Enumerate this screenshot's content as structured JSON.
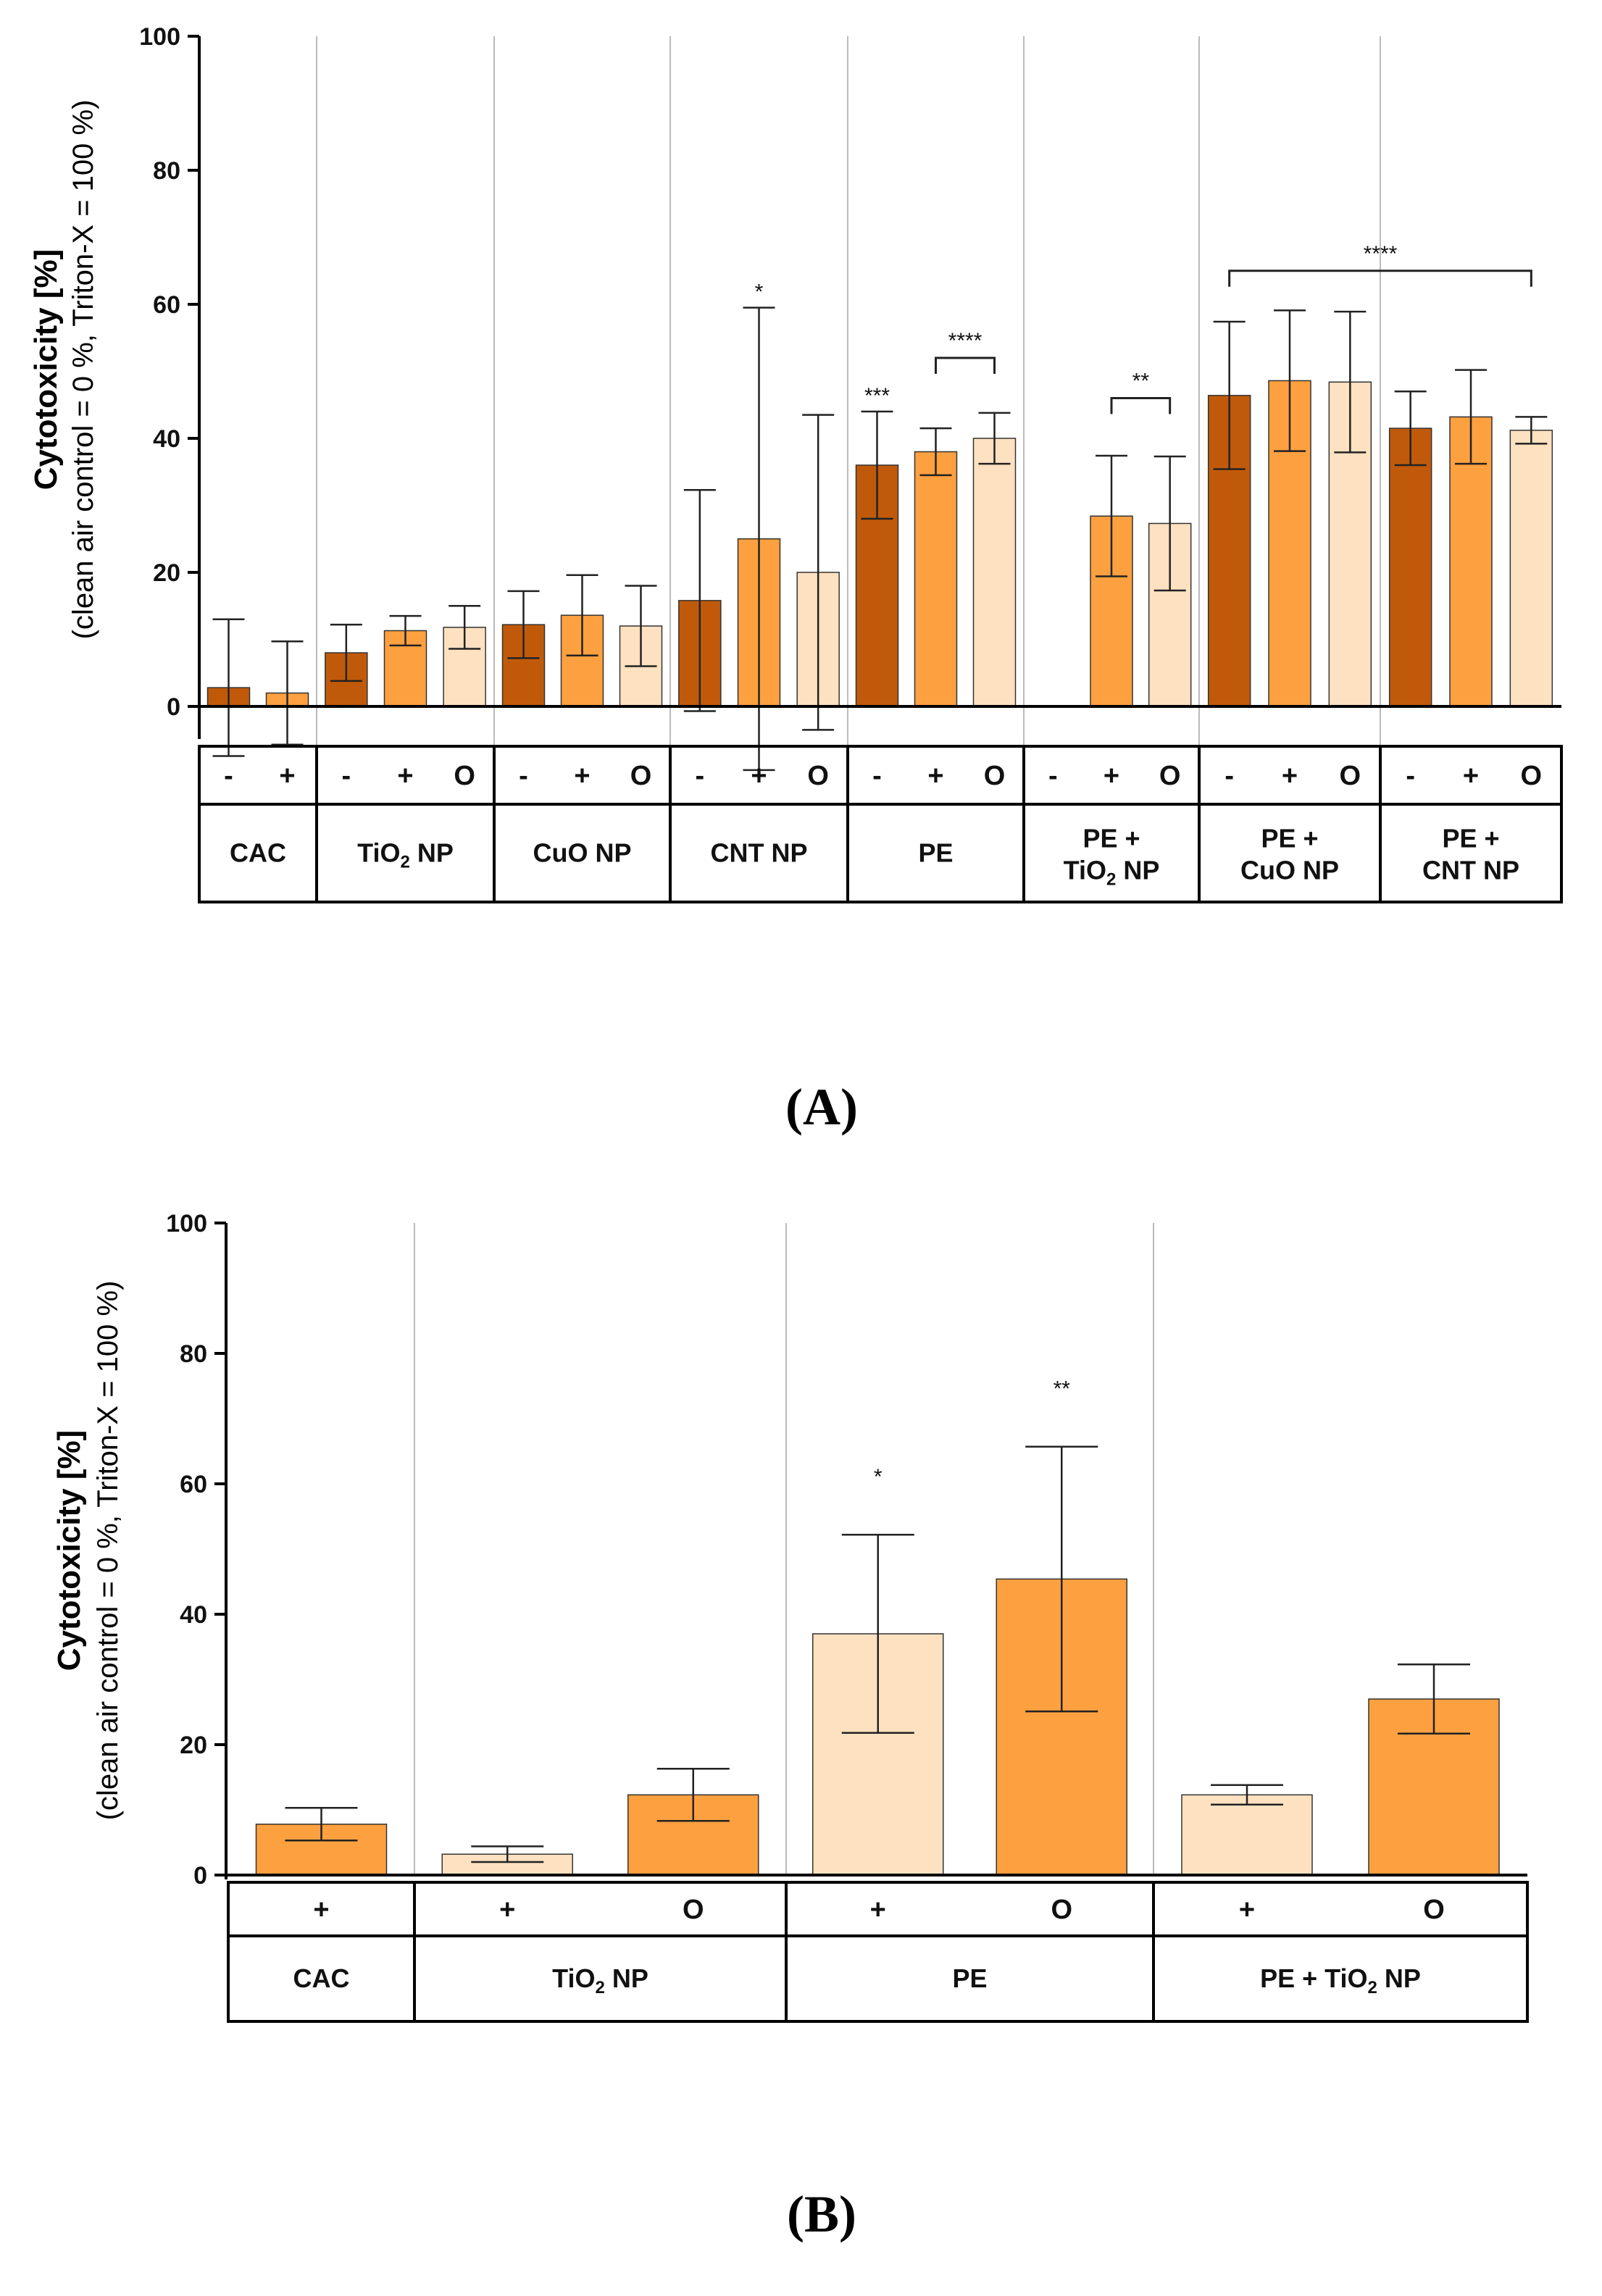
{
  "colors": {
    "dark": "#C05A0A",
    "medium": "#FCA040",
    "light": "#FDE1C0",
    "axis": "#000000",
    "separator": "#BBBBBB"
  },
  "chart_data": [
    {
      "panel": "(A)",
      "type": "bar",
      "ylabel_line1": "Cytotoxicity [%]",
      "ylabel_line2": "(clean air control = 0 %, Triton-X = 100 %)",
      "ylim": [
        -5,
        100
      ],
      "yticks": [
        "0",
        "20",
        "40",
        "60",
        "80",
        "100"
      ],
      "groups": [
        {
          "label": "CAC",
          "bars": [
            {
              "cond": "-",
              "tone": "dark",
              "value": 2.8,
              "err": 10.2
            },
            {
              "cond": "+",
              "tone": "medium",
              "value": 2.0,
              "err": 7.7
            }
          ]
        },
        {
          "label": "TiO2 NP",
          "bars": [
            {
              "cond": "-",
              "tone": "dark",
              "value": 8.0,
              "err": 4.2
            },
            {
              "cond": "+",
              "tone": "medium",
              "value": 11.3,
              "err": 2.2
            },
            {
              "cond": "O",
              "tone": "light",
              "value": 11.8,
              "err": 3.2
            }
          ]
        },
        {
          "label": "CuO NP",
          "bars": [
            {
              "cond": "-",
              "tone": "dark",
              "value": 12.2,
              "err": 5.0
            },
            {
              "cond": "+",
              "tone": "medium",
              "value": 13.6,
              "err": 6.0
            },
            {
              "cond": "O",
              "tone": "light",
              "value": 12.0,
              "err": 6.0
            }
          ]
        },
        {
          "label": "CNT NP",
          "bars": [
            {
              "cond": "-",
              "tone": "dark",
              "value": 15.8,
              "err": 16.5
            },
            {
              "cond": "+",
              "tone": "medium",
              "value": 25.0,
              "err": 34.5,
              "sig": "*"
            },
            {
              "cond": "O",
              "tone": "light",
              "value": 20.0,
              "err": 23.5
            }
          ]
        },
        {
          "label": "PE",
          "bars": [
            {
              "cond": "-",
              "tone": "dark",
              "value": 36.0,
              "err": 8.0,
              "sig": "***"
            },
            {
              "cond": "+",
              "tone": "medium",
              "value": 38.0,
              "err": 3.5
            },
            {
              "cond": "O",
              "tone": "light",
              "value": 40.0,
              "err": 3.8
            }
          ]
        },
        {
          "label": "PE + TiO2 NP",
          "bars": [
            {
              "cond": "-",
              "tone": "dark",
              "value": 0,
              "err": 0
            },
            {
              "cond": "+",
              "tone": "medium",
              "value": 28.4,
              "err": 9.0
            },
            {
              "cond": "O",
              "tone": "light",
              "value": 27.3,
              "err": 10.0
            }
          ]
        },
        {
          "label": "PE + CuO NP",
          "bars": [
            {
              "cond": "-",
              "tone": "dark",
              "value": 46.4,
              "err": 11.0
            },
            {
              "cond": "+",
              "tone": "medium",
              "value": 48.6,
              "err": 10.5
            },
            {
              "cond": "O",
              "tone": "light",
              "value": 48.4,
              "err": 10.5
            }
          ]
        },
        {
          "label": "PE + CNT NP",
          "bars": [
            {
              "cond": "-",
              "tone": "dark",
              "value": 41.5,
              "err": 5.5
            },
            {
              "cond": "+",
              "tone": "medium",
              "value": 43.2,
              "err": 7.0
            },
            {
              "cond": "O",
              "tone": "light",
              "value": 41.2,
              "err": 2.0
            }
          ]
        }
      ],
      "brackets": [
        {
          "label": "****",
          "group_from": 4,
          "bar_from": 1,
          "group_to": 4,
          "bar_to": 2,
          "y": 52
        },
        {
          "label": "**",
          "group_from": 5,
          "bar_from": 1,
          "group_to": 5,
          "bar_to": 2,
          "y": 46
        },
        {
          "label": "****",
          "group_from": 6,
          "bar_from": 0,
          "group_to": 7,
          "bar_to": 2,
          "y": 65
        }
      ]
    },
    {
      "panel": "(B)",
      "type": "bar",
      "ylabel_line1": "Cytotoxicity [%]",
      "ylabel_line2": "(clean air control = 0 %, Triton-X = 100 %)",
      "ylim": [
        0,
        100
      ],
      "yticks": [
        "0",
        "20",
        "40",
        "60",
        "80",
        "100"
      ],
      "groups": [
        {
          "label": "CAC",
          "bars": [
            {
              "cond": "+",
              "tone": "medium",
              "value": 7.8,
              "err": 2.5
            }
          ]
        },
        {
          "label": "TiO2 NP",
          "bars": [
            {
              "cond": "+",
              "tone": "light",
              "value": 3.2,
              "err": 1.2
            },
            {
              "cond": "O",
              "tone": "medium",
              "value": 12.3,
              "err": 4.0
            }
          ]
        },
        {
          "label": "PE",
          "bars": [
            {
              "cond": "+",
              "tone": "light",
              "value": 37.0,
              "err": 15.2,
              "sig": "*"
            },
            {
              "cond": "O",
              "tone": "medium",
              "value": 45.4,
              "err": 20.3,
              "sig": "**"
            }
          ]
        },
        {
          "label": "PE + TiO2 NP",
          "bars": [
            {
              "cond": "+",
              "tone": "light",
              "value": 12.3,
              "err": 1.5
            },
            {
              "cond": "O",
              "tone": "medium",
              "value": 27.0,
              "err": 5.3
            }
          ]
        }
      ],
      "brackets": []
    }
  ]
}
